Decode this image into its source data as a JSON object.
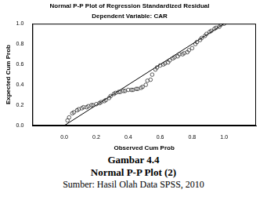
{
  "chart_data": {
    "type": "scatter",
    "title": "Normal P-P Plot of Regression Standardized Residual",
    "subtitle": "Dependent Variable: CAR",
    "x_label": "Observed Cum Prob",
    "y_label": "Expected Cum Prob",
    "xlim": [
      -0.2,
      1.2
    ],
    "ylim": [
      0,
      1
    ],
    "xticks": [
      {
        "value": 0,
        "label": "0.0"
      },
      {
        "value": 0.2,
        "label": "0.2"
      },
      {
        "value": 0.4,
        "label": "0.4"
      },
      {
        "value": 0.6,
        "label": "0.6"
      },
      {
        "value": 0.8,
        "label": "0.8"
      },
      {
        "value": 1,
        "label": "1.0"
      }
    ],
    "yticks": [
      {
        "value": 0,
        "label": "0.0"
      },
      {
        "value": 0.2,
        "label": "0.2"
      },
      {
        "value": 0.4,
        "label": "0.4"
      },
      {
        "value": 0.6,
        "label": "0.6"
      },
      {
        "value": 0.8,
        "label": "0.8"
      },
      {
        "value": 1,
        "label": "1.0"
      }
    ],
    "grid": false,
    "series": [
      {
        "type": "scatter",
        "color": "#333333",
        "marker": "circle",
        "x": [
          0.02,
          0.03,
          0.05,
          0.06,
          0.08,
          0.09,
          0.11,
          0.12,
          0.14,
          0.15,
          0.17,
          0.18,
          0.2,
          0.22,
          0.23,
          0.25,
          0.26,
          0.28,
          0.29,
          0.31,
          0.32,
          0.34,
          0.35,
          0.37,
          0.38,
          0.4,
          0.42,
          0.43,
          0.45,
          0.46,
          0.48,
          0.49,
          0.51,
          0.52,
          0.54,
          0.55,
          0.57,
          0.58,
          0.6,
          0.62,
          0.63,
          0.65,
          0.66,
          0.68,
          0.69,
          0.71,
          0.72,
          0.74,
          0.75,
          0.77,
          0.78,
          0.8,
          0.82,
          0.83,
          0.85,
          0.86,
          0.88,
          0.89,
          0.91,
          0.92,
          0.94,
          0.95,
          0.97,
          0.98,
          1.0
        ],
        "values": [
          0.05,
          0.08,
          0.12,
          0.13,
          0.15,
          0.16,
          0.17,
          0.18,
          0.18,
          0.19,
          0.2,
          0.2,
          0.21,
          0.22,
          0.23,
          0.24,
          0.25,
          0.27,
          0.29,
          0.31,
          0.32,
          0.33,
          0.33,
          0.34,
          0.34,
          0.35,
          0.35,
          0.35,
          0.36,
          0.36,
          0.37,
          0.38,
          0.4,
          0.44,
          0.45,
          0.5,
          0.55,
          0.57,
          0.59,
          0.6,
          0.61,
          0.62,
          0.64,
          0.66,
          0.67,
          0.68,
          0.7,
          0.7,
          0.71,
          0.72,
          0.74,
          0.76,
          0.8,
          0.82,
          0.84,
          0.86,
          0.88,
          0.9,
          0.92,
          0.93,
          0.95,
          0.96,
          0.97,
          0.99,
          1.0
        ]
      },
      {
        "type": "line",
        "color": "#000000",
        "line_style": "solid",
        "x": [
          0,
          1
        ],
        "values": [
          0,
          1
        ]
      }
    ]
  },
  "caption": {
    "figure": "Gambar 4.4",
    "title": "Normal P-P Plot (2)",
    "source": "Sumber: Hasil Olah Data SPSS, 2010"
  }
}
